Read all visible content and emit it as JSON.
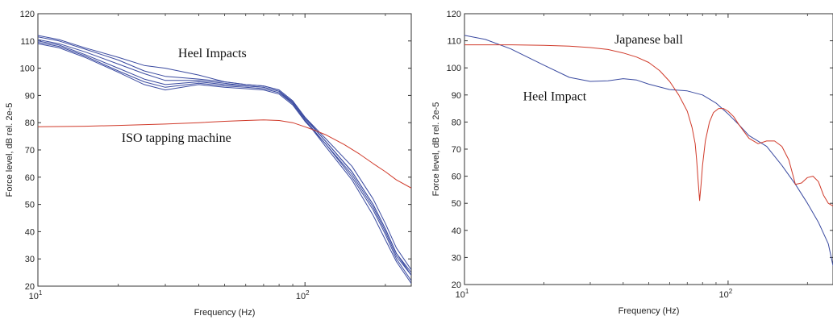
{
  "chart_data": [
    {
      "type": "line",
      "xscale": "log",
      "xlabel": "Frequency (Hz)",
      "ylabel": "Force level, dB rel. 2e-5",
      "xlim": [
        10,
        250
      ],
      "ylim": [
        20,
        120
      ],
      "xticks": [
        {
          "value": 10,
          "base": "10",
          "exp": "1"
        },
        {
          "value": 100,
          "base": "10",
          "exp": "2"
        }
      ],
      "yticks": [
        20,
        30,
        40,
        50,
        60,
        70,
        80,
        90,
        100,
        110,
        120
      ],
      "grid": false,
      "annotations": [
        {
          "text": "Heel Impacts",
          "x": 45,
          "y": 104
        },
        {
          "text": "ISO tapping machine",
          "x": 33,
          "y": 73
        }
      ],
      "series": [
        {
          "color": "#3a4aa0",
          "x": [
            10,
            12,
            15,
            20,
            25,
            30,
            40,
            50,
            60,
            70,
            80,
            90,
            100,
            120,
            150,
            180,
            200,
            220,
            250
          ],
          "y": [
            112,
            110.5,
            107.5,
            104,
            101,
            100,
            97.5,
            95,
            94,
            93.5,
            92,
            88,
            82,
            73,
            62,
            50,
            41,
            32,
            24
          ]
        },
        {
          "color": "#3a4aa0",
          "x": [
            10,
            12,
            15,
            20,
            25,
            30,
            40,
            50,
            60,
            70,
            80,
            90,
            100,
            120,
            150,
            180,
            200,
            220,
            250
          ],
          "y": [
            111.5,
            110,
            107,
            103,
            99,
            97,
            96,
            95,
            94,
            93.5,
            92,
            88,
            82,
            74,
            64,
            52,
            43,
            34,
            26
          ]
        },
        {
          "color": "#3a4aa0",
          "x": [
            10,
            12,
            15,
            20,
            25,
            30,
            40,
            50,
            60,
            70,
            80,
            90,
            100,
            120,
            150,
            180,
            200,
            220,
            250
          ],
          "y": [
            110.5,
            109,
            106,
            101.5,
            98,
            95.5,
            95.5,
            94.5,
            93.5,
            93,
            91.5,
            87,
            81,
            72,
            60,
            48,
            39,
            30,
            22
          ]
        },
        {
          "color": "#3a4aa0",
          "x": [
            10,
            12,
            15,
            20,
            25,
            30,
            40,
            50,
            60,
            70,
            80,
            90,
            100,
            120,
            150,
            180,
            200,
            220,
            250
          ],
          "y": [
            110,
            108.5,
            105,
            100,
            96,
            94,
            95,
            94,
            93.5,
            93,
            91.5,
            87.5,
            81.5,
            73,
            62,
            50,
            41,
            32,
            25
          ]
        },
        {
          "color": "#3a4aa0",
          "x": [
            10,
            12,
            15,
            20,
            25,
            30,
            40,
            50,
            60,
            70,
            80,
            90,
            100,
            120,
            150,
            180,
            200,
            220,
            250
          ],
          "y": [
            109.5,
            108,
            104.5,
            99,
            95,
            93,
            94.5,
            93.5,
            93,
            92.5,
            91,
            87,
            81,
            71,
            59,
            46,
            37,
            29,
            21
          ]
        },
        {
          "color": "#3a4aa0",
          "x": [
            10,
            12,
            15,
            20,
            25,
            30,
            40,
            50,
            60,
            70,
            80,
            90,
            100,
            120,
            150,
            180,
            200,
            220,
            250
          ],
          "y": [
            109,
            107.5,
            104,
            98.5,
            94,
            92,
            94,
            93,
            92.5,
            92,
            90.5,
            86.5,
            80.5,
            72,
            61,
            49,
            40,
            31,
            24
          ]
        },
        {
          "color": "#d03a2a",
          "x": [
            10,
            15,
            20,
            30,
            40,
            50,
            60,
            70,
            80,
            90,
            100,
            110,
            120,
            140,
            160,
            180,
            200,
            220,
            250
          ],
          "y": [
            78.5,
            78.7,
            79,
            79.5,
            80,
            80.5,
            80.8,
            81,
            80.8,
            80,
            78.5,
            77,
            75.5,
            72,
            68.5,
            65,
            62,
            59,
            56
          ]
        }
      ]
    },
    {
      "type": "line",
      "xscale": "log",
      "xlabel": "Frequency (Hz)",
      "ylabel": "Force level, dB rel. 2e-5",
      "xlim": [
        10,
        250
      ],
      "ylim": [
        20,
        120
      ],
      "xticks": [
        {
          "value": 10,
          "base": "10",
          "exp": "1"
        },
        {
          "value": 100,
          "base": "10",
          "exp": "2"
        }
      ],
      "yticks": [
        20,
        30,
        40,
        50,
        60,
        70,
        80,
        90,
        100,
        110,
        120
      ],
      "grid": false,
      "annotations": [
        {
          "text": "Japanese ball",
          "x": 50,
          "y": 109
        },
        {
          "text": "Heel Impact",
          "x": 22,
          "y": 88
        }
      ],
      "series": [
        {
          "color": "#3a4aa0",
          "x": [
            10,
            12,
            15,
            20,
            25,
            30,
            35,
            40,
            45,
            50,
            60,
            70,
            80,
            90,
            100,
            110,
            120,
            140,
            160,
            180,
            200,
            220,
            240,
            250
          ],
          "y": [
            112,
            110.5,
            107,
            101,
            96.5,
            95,
            95.2,
            96,
            95.5,
            94,
            92,
            91.5,
            90,
            87,
            83,
            79,
            75,
            71,
            64,
            57,
            50,
            43,
            35,
            27
          ]
        },
        {
          "color": "#d03a2a",
          "x": [
            10,
            15,
            20,
            25,
            30,
            35,
            40,
            45,
            50,
            55,
            60,
            65,
            70,
            73,
            75,
            76,
            77,
            78,
            79,
            80,
            82,
            85,
            88,
            92,
            96,
            100,
            105,
            110,
            120,
            130,
            140,
            150,
            160,
            170,
            180,
            190,
            200,
            210,
            220,
            230,
            240,
            250
          ],
          "y": [
            108.5,
            108.5,
            108.3,
            108,
            107.5,
            106.8,
            105.5,
            104,
            102,
            99,
            95,
            90,
            84,
            78,
            72,
            66,
            58,
            51,
            57,
            64,
            73,
            80,
            83.5,
            85,
            85,
            84,
            82,
            79,
            74,
            72,
            73,
            73,
            71,
            66,
            57,
            57.5,
            59.5,
            60,
            58,
            53,
            50,
            49
          ]
        }
      ]
    }
  ]
}
